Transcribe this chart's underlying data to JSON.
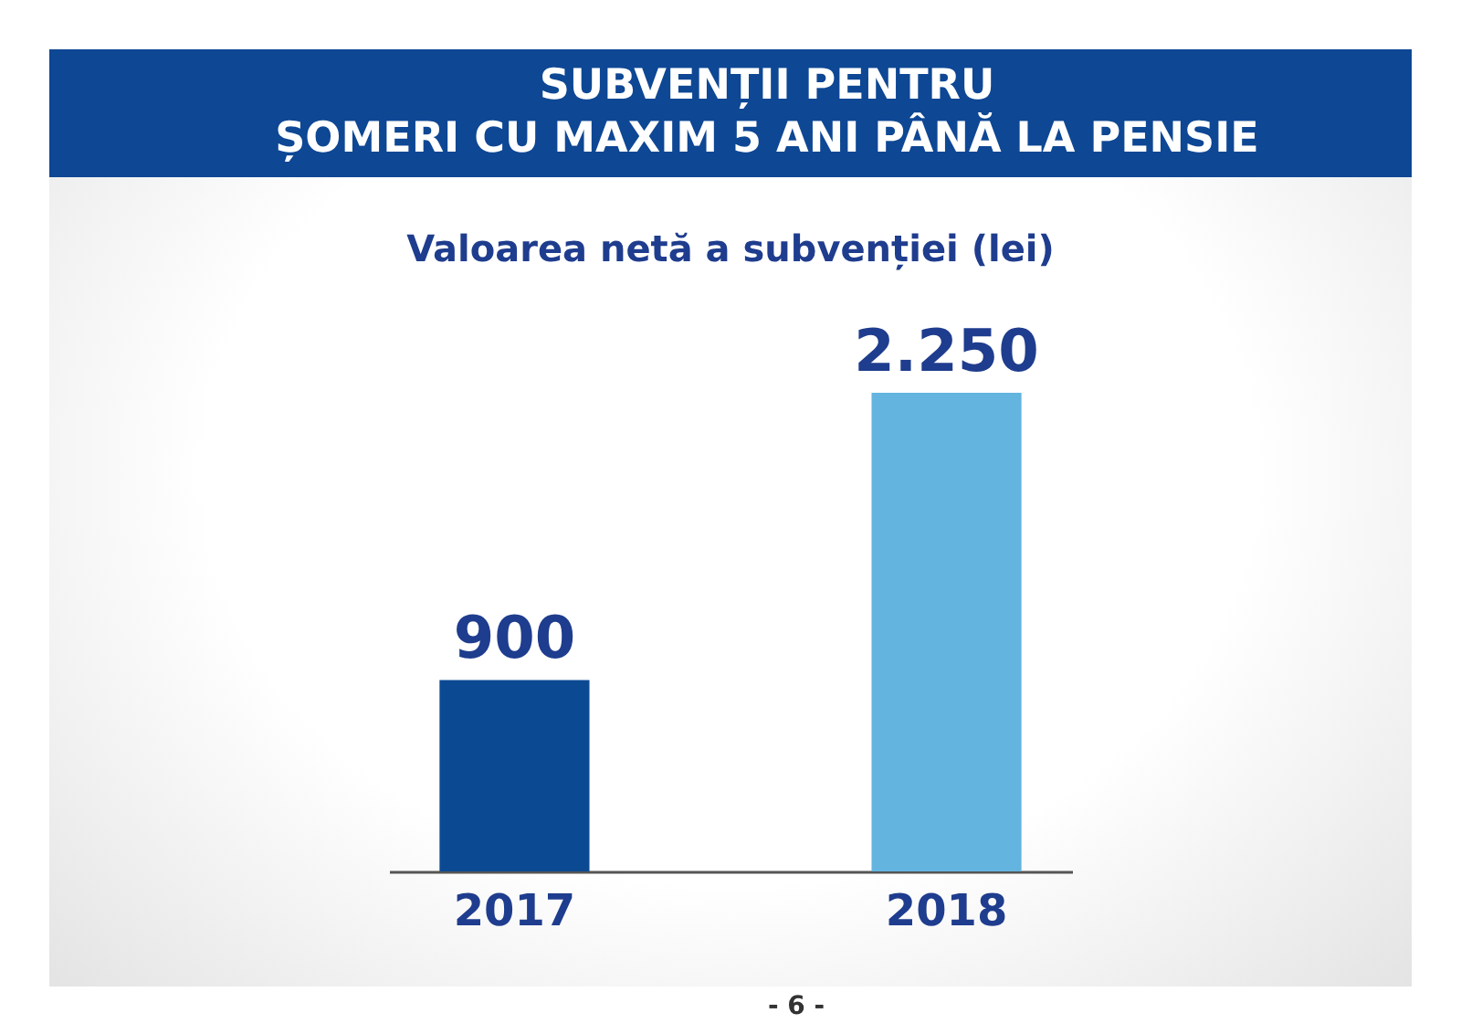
{
  "chart_data": {
    "type": "bar",
    "title": "SUBVENȚII PENTRU\nȘOMERI CU MAXIM 5 ANI PÂNĂ LA PENSIE",
    "subtitle": "Valoarea netă a subvenției (lei)",
    "categories": [
      "2017",
      "2018"
    ],
    "values": [
      900,
      2250
    ],
    "colors": [
      "#0b4a93",
      "#63b4df"
    ],
    "value_labels": [
      "900",
      "2.250"
    ],
    "annotations": [
      "- 6 -"
    ]
  }
}
